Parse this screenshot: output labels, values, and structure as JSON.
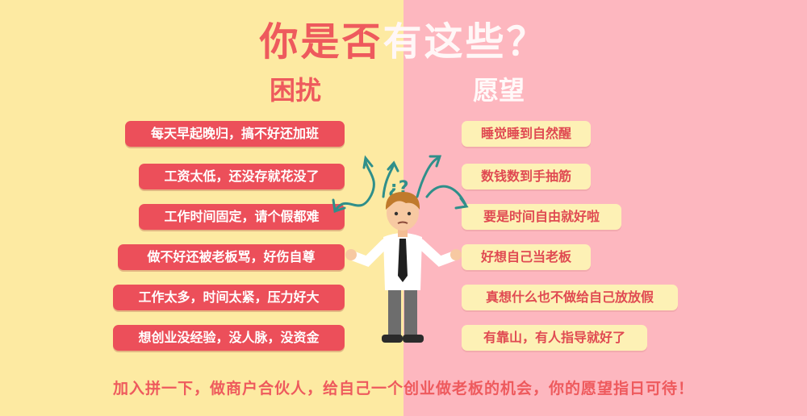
{
  "title": {
    "left": "你是否",
    "right": "有这些？"
  },
  "headings": {
    "troubles": "困扰",
    "wishes": "愿望"
  },
  "troubles": [
    "每天早起晚归，搞不好还加班",
    "工资太低，还没存就花没了",
    "工作时间固定，请个假都难",
    "做不好还被老板骂，好伤自尊",
    "工作太多，时间太紧，压力好大",
    "想创业没经验，没人脉，没资金"
  ],
  "wishes": [
    "睡觉睡到自然醒",
    "数钱数到手抽筋",
    "要是时间自由就好啦",
    "好想自己当老板",
    "真想什么也不做给自己放放假",
    "有靠山，有人指导就好了"
  ],
  "figure": {
    "marks": "¿?"
  },
  "footer": "加入拼一下，做商户合伙人，给自己一个创业做老板的机会，你的愿望指日可待！",
  "colors": {
    "left_bg": "#fdeaa2",
    "right_bg": "#fdb7bf",
    "accent_red": "#ec4f5a",
    "cream_pill": "#fdf1b5",
    "arrow_teal": "#2f8f8a"
  }
}
